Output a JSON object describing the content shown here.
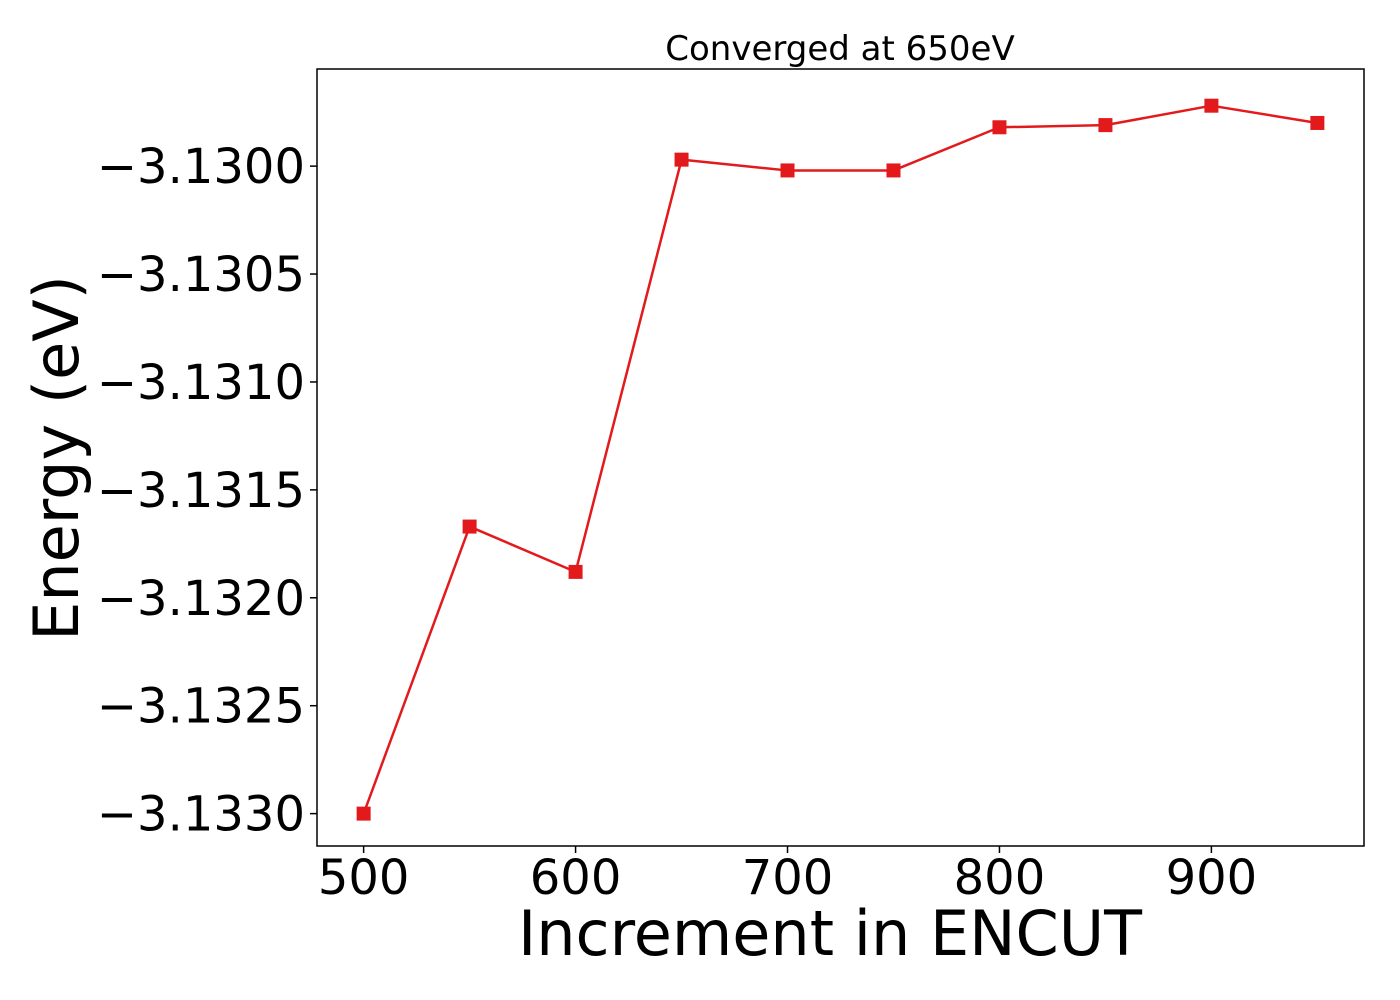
{
  "chart_data": {
    "type": "line",
    "title": "Converged at 650eV",
    "xlabel": "Increment in ENCUT",
    "ylabel": "Energy (eV)",
    "x": [
      500,
      550,
      600,
      650,
      700,
      750,
      800,
      850,
      900,
      950
    ],
    "series": [
      {
        "values": [
          -3.133,
          -3.13167,
          -3.13188,
          -3.12997,
          -3.13002,
          -3.13002,
          -3.12982,
          -3.12981,
          -3.12972,
          -3.1298
        ],
        "color": "#e31a1c",
        "marker": "square"
      }
    ],
    "xlim": [
      478,
      972
    ],
    "ylim": [
      -3.13315,
      -3.12955
    ],
    "xticks": [
      500,
      600,
      700,
      800,
      900
    ],
    "xtick_labels": [
      "500",
      "600",
      "700",
      "800",
      "900"
    ],
    "yticks": [
      -3.13,
      -3.1305,
      -3.131,
      -3.1315,
      -3.132,
      -3.1325,
      -3.133
    ],
    "ytick_labels": [
      "−3.1300",
      "−3.1305",
      "−3.1310",
      "−3.1315",
      "−3.1320",
      "−3.1325",
      "−3.1330"
    ],
    "grid": false,
    "legend": "none"
  }
}
